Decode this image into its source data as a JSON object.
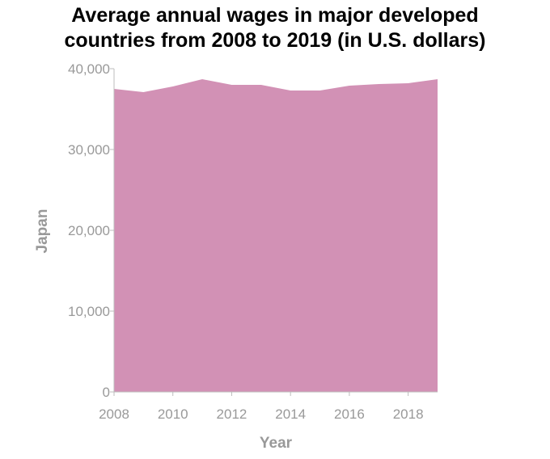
{
  "chart_data": {
    "type": "area",
    "title_lines": [
      "Average annual wages in major developed",
      "countries from 2008 to 2019 (in U.S. dollars)"
    ],
    "xlabel": "Year",
    "ylabel": "Japan",
    "x": [
      2008,
      2009,
      2010,
      2011,
      2012,
      2013,
      2014,
      2015,
      2016,
      2017,
      2018,
      2019
    ],
    "series": [
      {
        "values": [
          37500,
          37100,
          37800,
          38700,
          38000,
          38000,
          37300,
          37300,
          37900,
          38100,
          38200,
          38700
        ]
      }
    ],
    "xlim": [
      2008,
      2019
    ],
    "ylim": [
      0,
      40000
    ],
    "x_ticks": [
      2008,
      2010,
      2012,
      2014,
      2016,
      2018
    ],
    "x_tick_labels": [
      "2008",
      "2010",
      "2012",
      "2014",
      "2016",
      "2018"
    ],
    "y_ticks": [
      0,
      10000,
      20000,
      30000,
      40000
    ],
    "y_tick_labels": [
      "0",
      "10,000",
      "20,000",
      "30,000",
      "40,000"
    ],
    "fill_color": "#d291b5",
    "grid": false,
    "legend": "none"
  }
}
